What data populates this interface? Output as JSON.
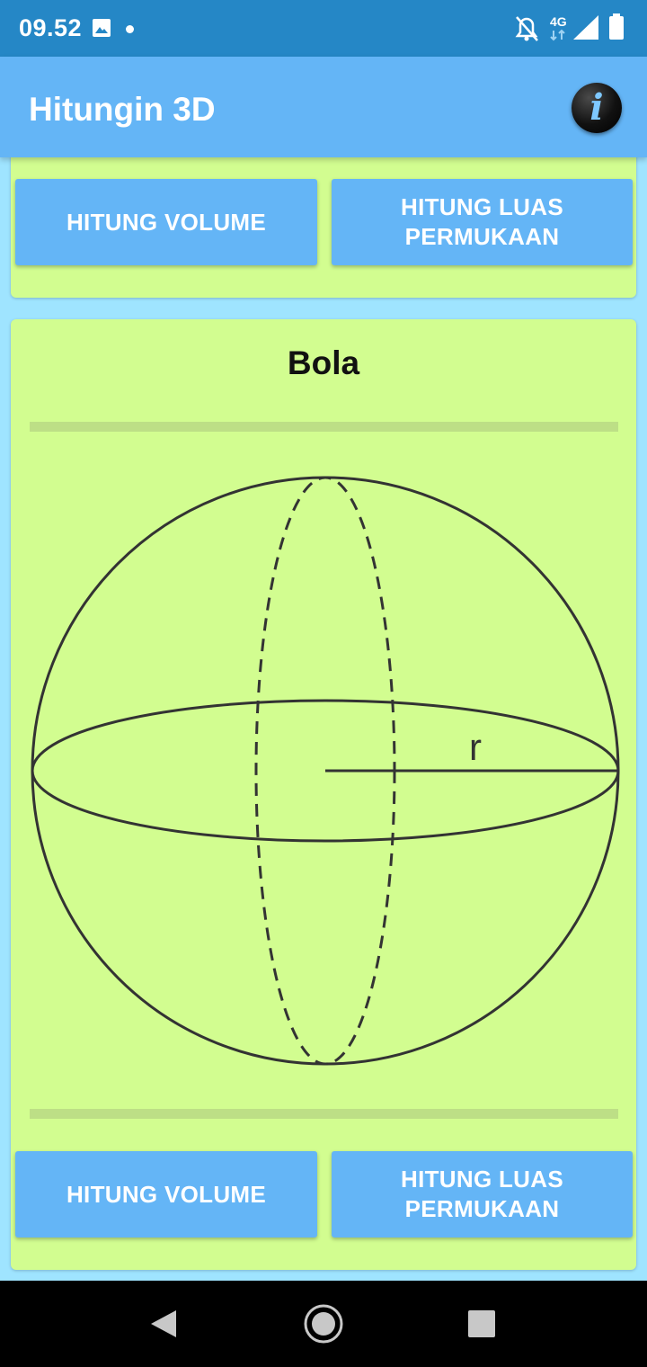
{
  "status_bar": {
    "time": "09.52",
    "network_label": "4G"
  },
  "app_bar": {
    "title": "Hitungin 3D",
    "info_icon_glyph": "i"
  },
  "top_card": {
    "volume_button": "HITUNG VOLUME",
    "surface_button": "HITUNG LUAS PERMUKAAN"
  },
  "main_card": {
    "title": "Bola",
    "diagram_label": "r",
    "volume_button": "HITUNG VOLUME",
    "surface_button": "HITUNG LUAS PERMUKAAN"
  },
  "colors": {
    "status_bar": "#2587c6",
    "app_bar": "#64b5f6",
    "background": "#9fe4ff",
    "card": "#d2fd90",
    "button": "#64b5f6",
    "divider": "#bddf86"
  },
  "icons": [
    "image-icon",
    "notifications-off-icon",
    "signal-icon",
    "battery-icon",
    "info-icon",
    "back-icon",
    "home-icon",
    "recents-icon"
  ]
}
